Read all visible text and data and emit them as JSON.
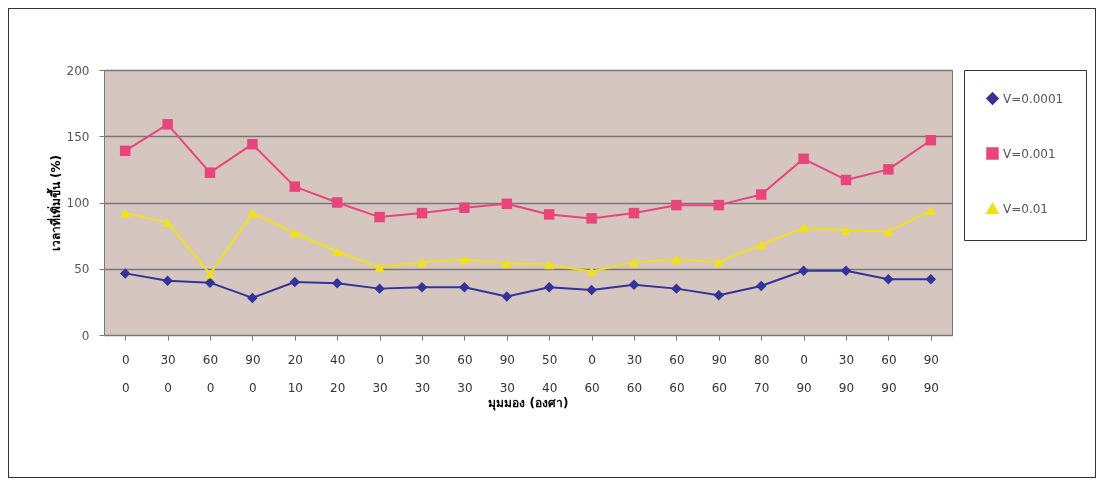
{
  "chart_data": {
    "type": "line",
    "xlabel": "มุมมอง (องศา)",
    "ylabel": "เวลาที่เพิ่มขึ้น (%)",
    "categories": [
      "0\n0",
      "30\n0",
      "60\n0",
      "90\n0",
      "20\n10",
      "40\n20",
      "0\n30",
      "30\n30",
      "60\n30",
      "90\n30",
      "50\n40",
      "0\n60",
      "30\n60",
      "60\n60",
      "90\n60",
      "80\n70",
      "0\n90",
      "30\n90",
      "60\n90",
      "90\n90"
    ],
    "series": [
      {
        "name": "V=0.0001",
        "color": "#333399",
        "marker": "diamond",
        "values": [
          46.5,
          41,
          39.5,
          28,
          40,
          39,
          35,
          36,
          36,
          29,
          36,
          34,
          38,
          35,
          30,
          37,
          48.5,
          48.5,
          42,
          42
        ]
      },
      {
        "name": "V=0.001",
        "color": "#e8457a",
        "marker": "square",
        "values": [
          139,
          159,
          122.5,
          144,
          112,
          100,
          89,
          92,
          96,
          99,
          91,
          88,
          92,
          98,
          98,
          106,
          133,
          117,
          125,
          147
        ]
      },
      {
        "name": "V=0.01",
        "color": "#f0e01a",
        "marker": "triangle",
        "values": [
          92,
          85,
          46,
          92,
          77,
          63,
          51,
          55,
          57,
          54,
          53,
          48,
          55,
          57,
          55,
          68,
          81,
          79,
          78,
          94
        ]
      }
    ],
    "ylim": [
      0,
      200
    ],
    "yticks": [
      0,
      50,
      100,
      150,
      200
    ],
    "grid": "y",
    "legend": "right",
    "line_style": "solid"
  }
}
